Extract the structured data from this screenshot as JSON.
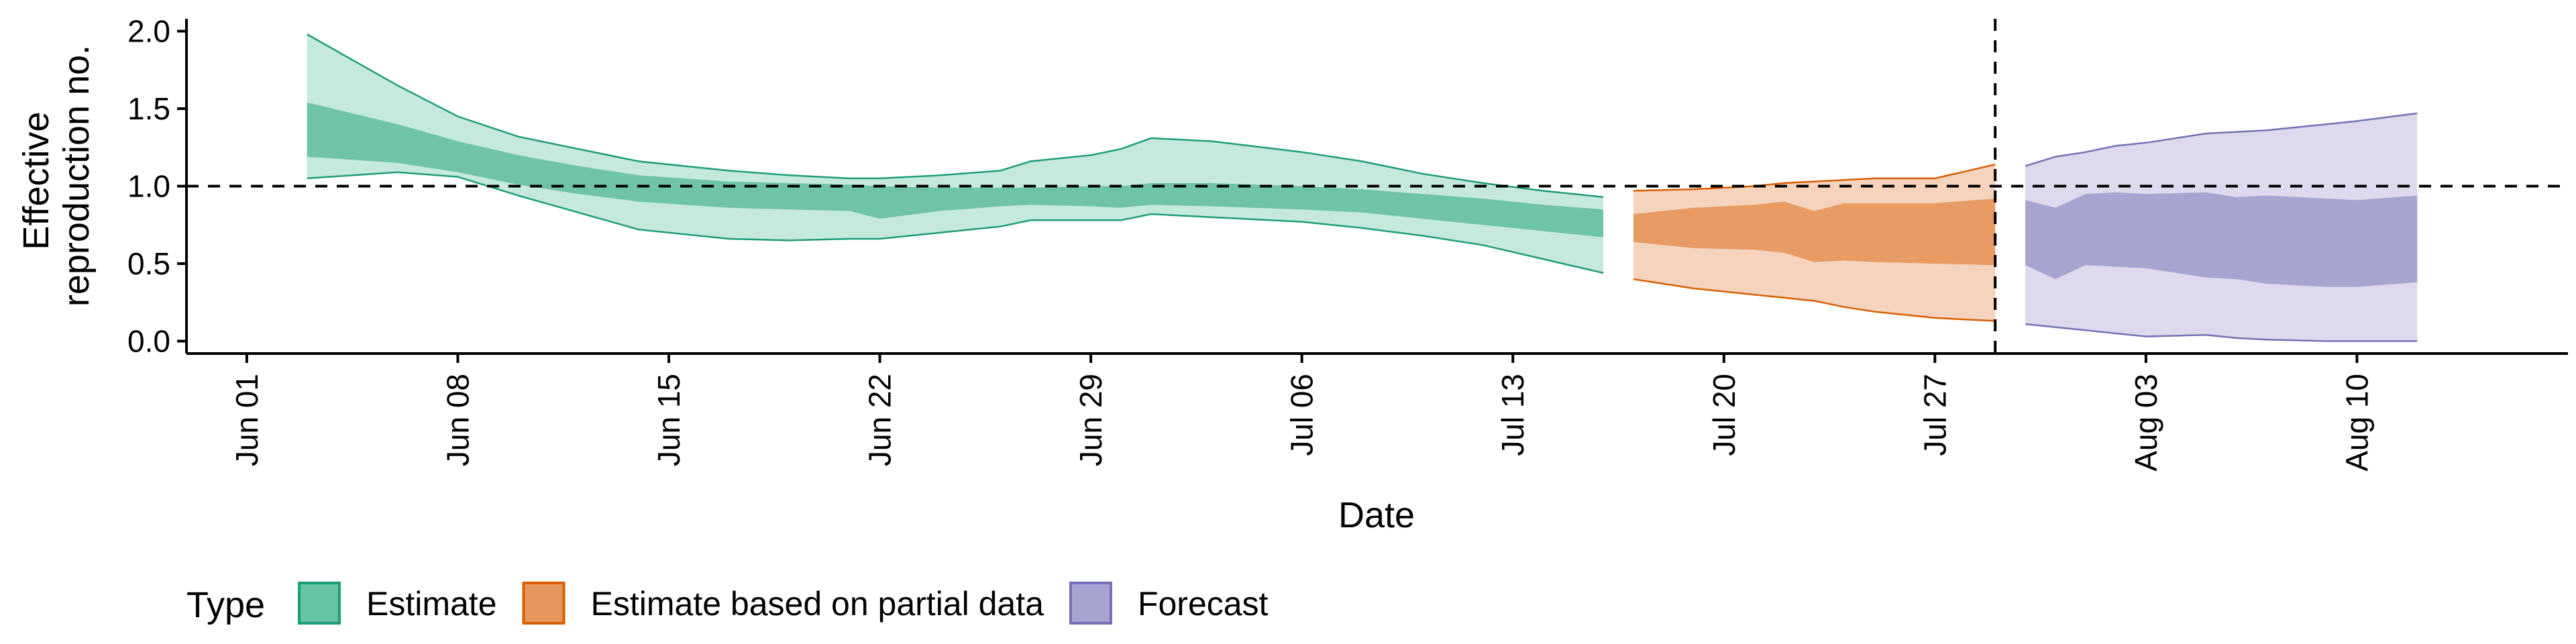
{
  "chart_data": {
    "type": "area",
    "xlabel": "Date",
    "ylabel": [
      "Effective",
      "reproduction no."
    ],
    "ylim": [
      -0.08,
      2.08
    ],
    "xlim": [
      "2020-05-30",
      "2020-08-17"
    ],
    "yticks": [
      0.0,
      0.5,
      1.0,
      1.5,
      2.0
    ],
    "ytick_labels": [
      "0.0",
      "0.5",
      "1.0",
      "1.5",
      "2.0"
    ],
    "xticks": [
      "2020-06-01",
      "2020-06-08",
      "2020-06-15",
      "2020-06-22",
      "2020-06-29",
      "2020-07-06",
      "2020-07-13",
      "2020-07-20",
      "2020-07-27",
      "2020-08-03",
      "2020-08-10"
    ],
    "xtick_labels": [
      "Jun 01",
      "Jun 08",
      "Jun 15",
      "Jun 22",
      "Jun 29",
      "Jul 06",
      "Jul 13",
      "Jul 20",
      "Jul 27",
      "Aug 03",
      "Aug 10"
    ],
    "reference_hline": 1.0,
    "reference_vline": "2020-07-29",
    "grid": false,
    "legend": {
      "position": "bottom",
      "title": "Type",
      "entries": [
        {
          "label": "Estimate",
          "fill": "#66C2A5",
          "stroke": "#1B9E77"
        },
        {
          "label": "Estimate based on partial data",
          "fill": "#E6975D",
          "stroke": "#D95F02"
        },
        {
          "label": "Forecast",
          "fill": "#A8A4D2",
          "stroke": "#7570B3"
        }
      ]
    },
    "series": [
      {
        "name": "Estimate",
        "outer_fill": "#C6E9DE",
        "inner_fill": "#6EC3A8",
        "stroke": "#1B9E77",
        "x": [
          "2020-06-03",
          "2020-06-06",
          "2020-06-08",
          "2020-06-10",
          "2020-06-12",
          "2020-06-14",
          "2020-06-17",
          "2020-06-19",
          "2020-06-21",
          "2020-06-22",
          "2020-06-24",
          "2020-06-26",
          "2020-06-27",
          "2020-06-29",
          "2020-06-30",
          "2020-07-01",
          "2020-07-03",
          "2020-07-06",
          "2020-07-08",
          "2020-07-10",
          "2020-07-12",
          "2020-07-14",
          "2020-07-16"
        ],
        "upper90": [
          1.98,
          1.65,
          1.45,
          1.32,
          1.24,
          1.16,
          1.1,
          1.07,
          1.05,
          1.05,
          1.07,
          1.1,
          1.16,
          1.2,
          1.24,
          1.31,
          1.29,
          1.22,
          1.16,
          1.08,
          1.02,
          0.97,
          0.93
        ],
        "upper50": [
          1.54,
          1.4,
          1.29,
          1.2,
          1.13,
          1.07,
          1.03,
          1.02,
          1.01,
          1.0,
          0.99,
          0.99,
          0.99,
          1.0,
          1.0,
          1.02,
          1.02,
          1.0,
          0.98,
          0.95,
          0.92,
          0.88,
          0.85
        ],
        "lower50": [
          1.19,
          1.15,
          1.09,
          1.01,
          0.95,
          0.9,
          0.86,
          0.85,
          0.84,
          0.79,
          0.84,
          0.87,
          0.88,
          0.87,
          0.86,
          0.88,
          0.87,
          0.85,
          0.83,
          0.79,
          0.75,
          0.71,
          0.67
        ],
        "lower90": [
          1.05,
          1.09,
          1.06,
          0.94,
          0.83,
          0.72,
          0.66,
          0.65,
          0.66,
          0.66,
          0.7,
          0.74,
          0.78,
          0.78,
          0.78,
          0.82,
          0.8,
          0.77,
          0.73,
          0.68,
          0.62,
          0.53,
          0.44
        ]
      },
      {
        "name": "Estimate based on partial data",
        "outer_fill": "#F5D3BD",
        "inner_fill": "#E89B62",
        "stroke": "#D95F02",
        "x": [
          "2020-07-17",
          "2020-07-19",
          "2020-07-21",
          "2020-07-22",
          "2020-07-23",
          "2020-07-24",
          "2020-07-25",
          "2020-07-27",
          "2020-07-29"
        ],
        "upper90": [
          0.97,
          0.98,
          1.0,
          1.02,
          1.03,
          1.04,
          1.05,
          1.05,
          1.14
        ],
        "upper50": [
          0.82,
          0.86,
          0.88,
          0.9,
          0.84,
          0.89,
          0.89,
          0.89,
          0.92
        ],
        "lower50": [
          0.64,
          0.6,
          0.59,
          0.57,
          0.51,
          0.52,
          0.51,
          0.5,
          0.49
        ],
        "lower90": [
          0.4,
          0.34,
          0.3,
          0.28,
          0.26,
          0.22,
          0.19,
          0.15,
          0.13
        ]
      },
      {
        "name": "Forecast",
        "outer_fill": "#DCDAEC",
        "inner_fill": "#A8A4D2",
        "stroke": "#7570B3",
        "x": [
          "2020-07-30",
          "2020-07-31",
          "2020-08-01",
          "2020-08-02",
          "2020-08-03",
          "2020-08-05",
          "2020-08-06",
          "2020-08-07",
          "2020-08-09",
          "2020-08-10",
          "2020-08-12"
        ],
        "upper90": [
          1.13,
          1.19,
          1.22,
          1.26,
          1.28,
          1.34,
          1.35,
          1.36,
          1.4,
          1.42,
          1.47
        ],
        "upper50": [
          0.91,
          0.86,
          0.95,
          0.96,
          0.95,
          0.96,
          0.93,
          0.94,
          0.92,
          0.91,
          0.94
        ],
        "lower50": [
          0.49,
          0.4,
          0.49,
          0.48,
          0.47,
          0.41,
          0.4,
          0.37,
          0.35,
          0.35,
          0.38
        ],
        "lower90": [
          0.11,
          0.09,
          0.07,
          0.05,
          0.03,
          0.04,
          0.02,
          0.01,
          0.0,
          0.0,
          0.0
        ]
      }
    ]
  }
}
